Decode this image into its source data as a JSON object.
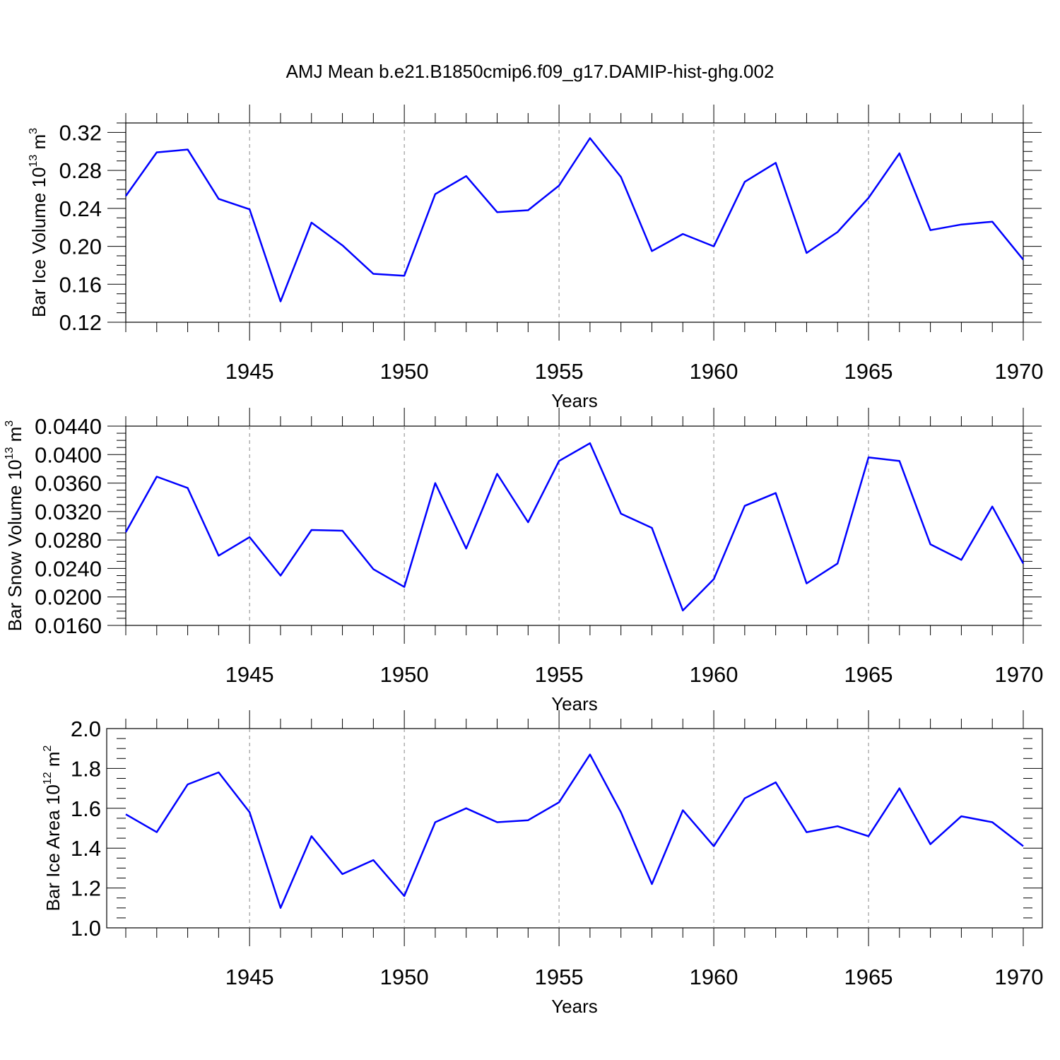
{
  "figure": {
    "title": "AMJ Mean b.e21.B1850cmip6.f09_g17.DAMIP-hist-ghg.002",
    "line_color": "#0000ff"
  },
  "chart_data": [
    {
      "type": "line",
      "title": "AMJ Mean b.e21.B1850cmip6.f09_g17.DAMIP-hist-ghg.002",
      "xlabel": "Years",
      "ylabel_parts": [
        "Bar Ice Volume 10",
        "13",
        " m",
        "3"
      ],
      "xlim": [
        1941,
        1970
      ],
      "ylim": [
        0.12,
        0.33
      ],
      "x_ticks": [
        "1945",
        "1950",
        "1955",
        "1960",
        "1965",
        "1970"
      ],
      "y_ticks": [
        "0.12",
        "0.16",
        "0.20",
        "0.24",
        "0.28",
        "0.32"
      ],
      "y_minor_step": 0.01,
      "x": [
        1941,
        1942,
        1943,
        1944,
        1945,
        1946,
        1947,
        1948,
        1949,
        1950,
        1951,
        1952,
        1953,
        1954,
        1955,
        1956,
        1957,
        1958,
        1959,
        1960,
        1961,
        1962,
        1963,
        1964,
        1965,
        1966,
        1967,
        1968,
        1969,
        1970
      ],
      "series": [
        {
          "name": "Bar Ice Volume",
          "values": [
            0.253,
            0.299,
            0.302,
            0.25,
            0.239,
            0.142,
            0.225,
            0.201,
            0.171,
            0.169,
            0.255,
            0.274,
            0.236,
            0.238,
            0.264,
            0.314,
            0.273,
            0.195,
            0.213,
            0.2,
            0.268,
            0.288,
            0.193,
            0.215,
            0.251,
            0.298,
            0.217,
            0.223,
            0.226,
            0.186
          ]
        }
      ]
    },
    {
      "type": "line",
      "xlabel": "Years",
      "ylabel_parts": [
        "Bar Snow Volume 10",
        "13",
        " m",
        "3"
      ],
      "xlim": [
        1941,
        1970
      ],
      "ylim": [
        0.016,
        0.044
      ],
      "x_ticks": [
        "1945",
        "1950",
        "1955",
        "1960",
        "1965",
        "1970"
      ],
      "y_ticks": [
        "0.0160",
        "0.0200",
        "0.0240",
        "0.0280",
        "0.0320",
        "0.0360",
        "0.0400",
        "0.0440"
      ],
      "y_minor_step": 0.001,
      "x": [
        1941,
        1942,
        1943,
        1944,
        1945,
        1946,
        1947,
        1948,
        1949,
        1950,
        1951,
        1952,
        1953,
        1954,
        1955,
        1956,
        1957,
        1958,
        1959,
        1960,
        1961,
        1962,
        1963,
        1964,
        1965,
        1966,
        1967,
        1968,
        1969,
        1970
      ],
      "series": [
        {
          "name": "Bar Snow Volume",
          "values": [
            0.0291,
            0.0369,
            0.0353,
            0.0258,
            0.0284,
            0.023,
            0.0294,
            0.0293,
            0.0239,
            0.0214,
            0.036,
            0.0268,
            0.0373,
            0.0305,
            0.0391,
            0.0416,
            0.0317,
            0.0297,
            0.0181,
            0.0225,
            0.0328,
            0.0346,
            0.0219,
            0.0247,
            0.0396,
            0.0391,
            0.0274,
            0.0252,
            0.0327,
            0.0247
          ]
        }
      ]
    },
    {
      "type": "line",
      "xlabel": "Years",
      "ylabel_parts": [
        "Bar Ice Area 10",
        "12",
        " m",
        "2"
      ],
      "xlim": [
        1941,
        1970
      ],
      "ylim": [
        1.0,
        2.0
      ],
      "x_ticks": [
        "1945",
        "1950",
        "1955",
        "1960",
        "1965",
        "1970"
      ],
      "y_ticks": [
        "1.0",
        "1.2",
        "1.4",
        "1.6",
        "1.8",
        "2.0"
      ],
      "y_minor_step": 0.05,
      "x": [
        1941,
        1942,
        1943,
        1944,
        1945,
        1946,
        1947,
        1948,
        1949,
        1950,
        1951,
        1952,
        1953,
        1954,
        1955,
        1956,
        1957,
        1958,
        1959,
        1960,
        1961,
        1962,
        1963,
        1964,
        1965,
        1966,
        1967,
        1968,
        1969,
        1970
      ],
      "series": [
        {
          "name": "Bar Ice Area",
          "values": [
            1.57,
            1.48,
            1.72,
            1.78,
            1.58,
            1.1,
            1.46,
            1.27,
            1.34,
            1.16,
            1.53,
            1.6,
            1.53,
            1.54,
            1.63,
            1.87,
            1.58,
            1.22,
            1.59,
            1.41,
            1.65,
            1.73,
            1.48,
            1.51,
            1.46,
            1.7,
            1.42,
            1.56,
            1.53,
            1.41
          ]
        }
      ]
    }
  ]
}
